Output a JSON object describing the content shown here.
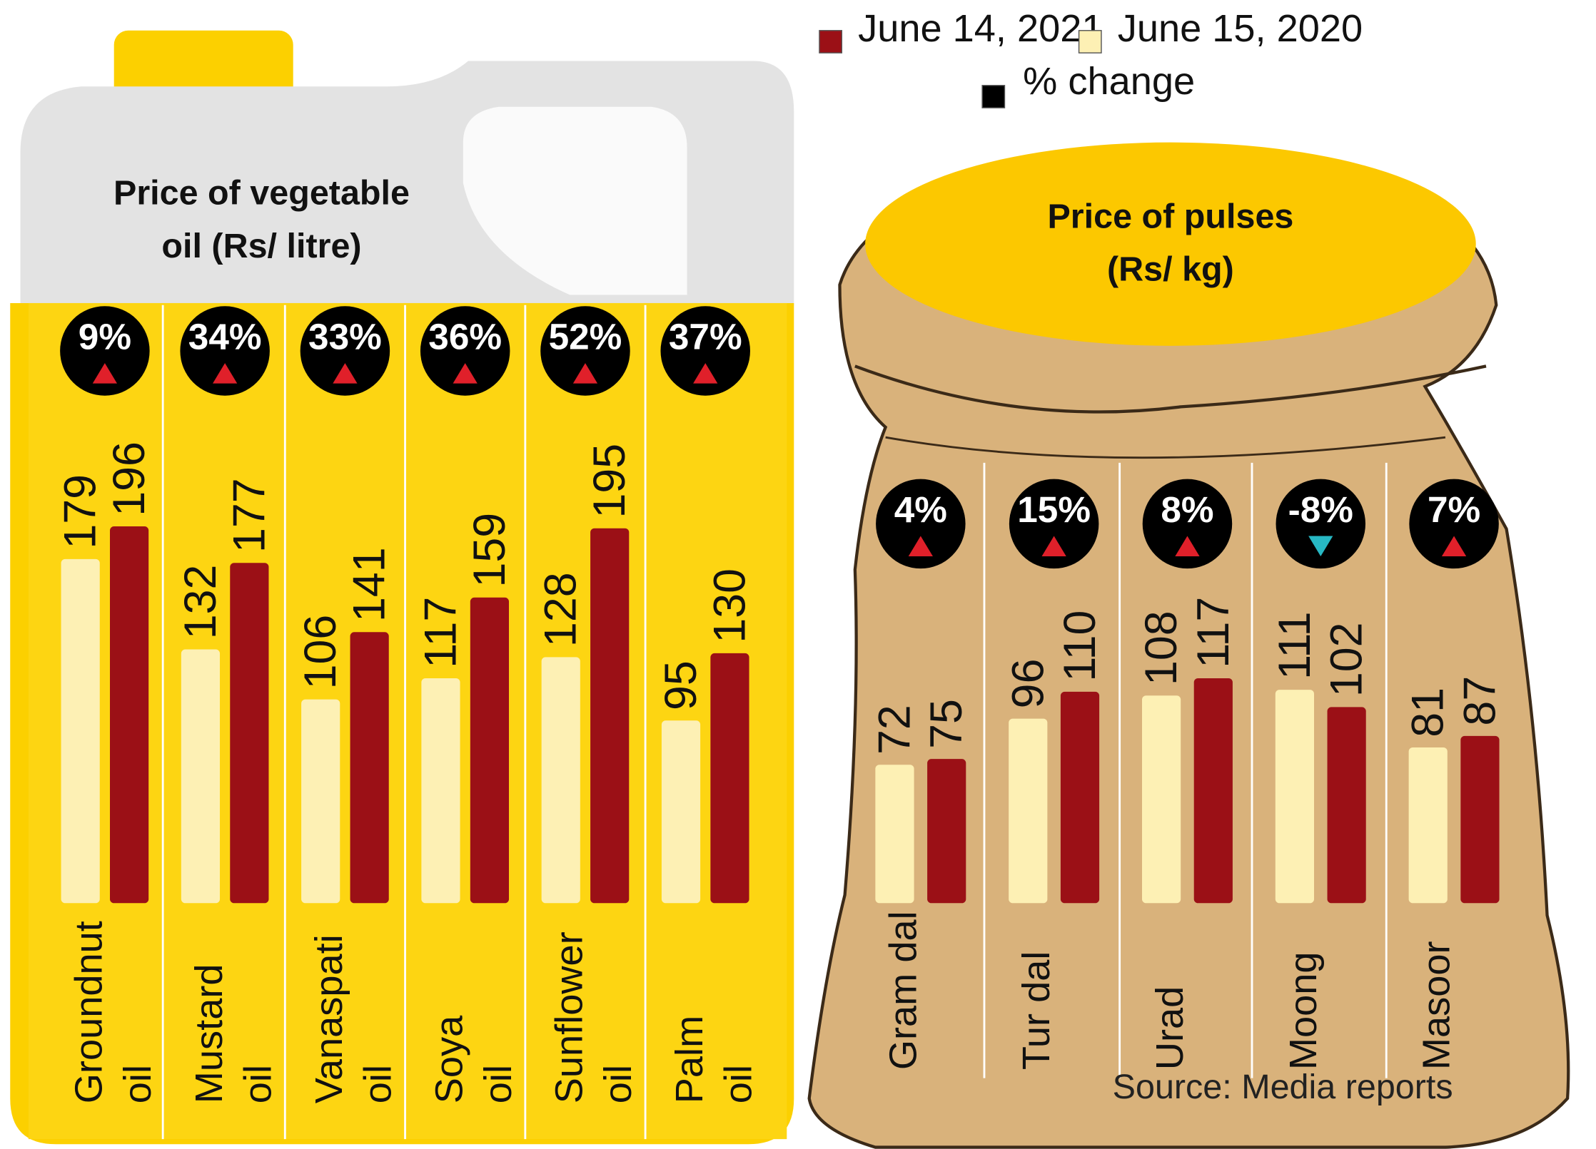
{
  "chart_data": [
    {
      "type": "bar",
      "title": "Price of vegetable oil (Rs/ litre)",
      "categories": [
        "Groundnut oil",
        "Mustard oil",
        "Vanaspati oil",
        "Soya oil",
        "Sunflower oil",
        "Palm oil"
      ],
      "series": [
        {
          "name": "June 14, 2021",
          "color": "#9b1016",
          "values": [
            196,
            177,
            141,
            159,
            195,
            130
          ]
        },
        {
          "name": "June 15, 2020",
          "color": "#fdf0b4",
          "values": [
            179,
            132,
            106,
            117,
            128,
            95
          ]
        },
        {
          "name": "% change",
          "color": "#000000",
          "values": [
            9,
            34,
            33,
            36,
            52,
            37
          ],
          "value_labels": [
            "9%",
            "34%",
            "33%",
            "36%",
            "52%",
            "37%"
          ]
        }
      ]
    },
    {
      "type": "bar",
      "title": "Price of pulses (Rs/ kg)",
      "categories": [
        "Gram dal",
        "Tur dal",
        "Urad",
        "Moong",
        "Masoor"
      ],
      "series": [
        {
          "color": "#9b1016",
          "values": [
            75,
            110,
            117,
            102,
            87
          ]
        },
        {
          "color": "#fdf0b4",
          "values": [
            72,
            96,
            108,
            111,
            81
          ]
        },
        {
          "color": "#000000",
          "values": [
            4,
            15,
            8,
            -8,
            7
          ],
          "value_labels": [
            "4%",
            "15%",
            "8%",
            "-8%",
            "7%"
          ]
        }
      ]
    }
  ],
  "source": "Source:  Media reports"
}
